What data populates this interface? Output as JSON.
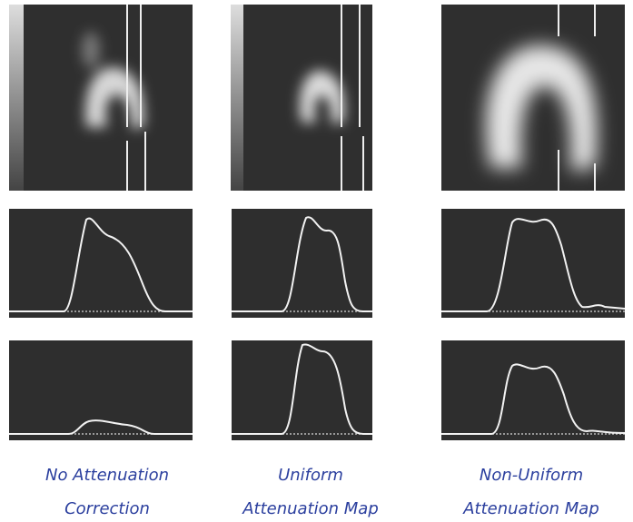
{
  "columns": [
    {
      "caption": [
        "No Attenuation",
        "Correction"
      ]
    },
    {
      "caption": [
        "Uniform",
        "Attenuation Map"
      ]
    },
    {
      "caption": [
        "Non-Uniform",
        "Attenuation Map"
      ]
    }
  ]
}
